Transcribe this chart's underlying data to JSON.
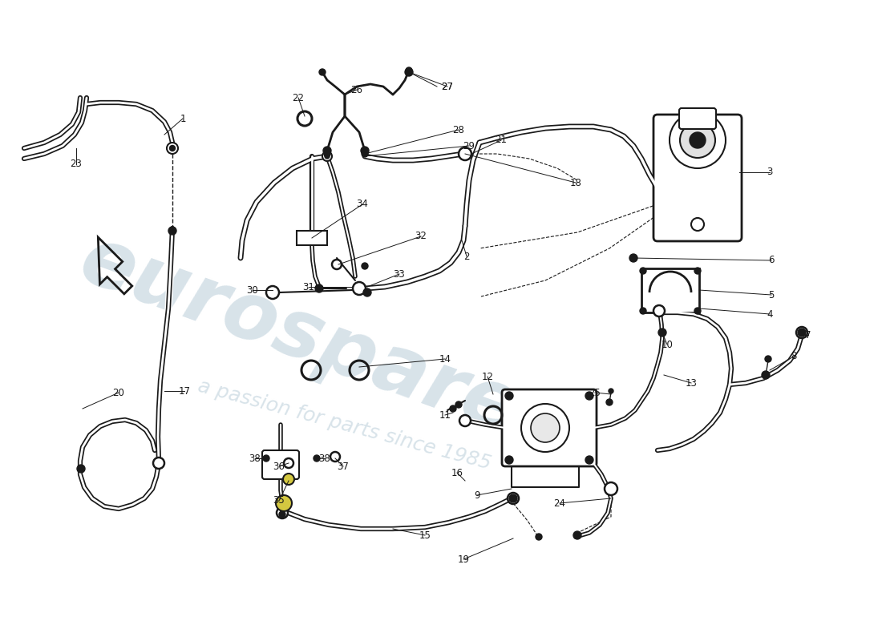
{
  "background_color": "#ffffff",
  "line_color": "#1a1a1a",
  "label_color": "#000000",
  "watermark_text1": "eurospares",
  "watermark_text2": "a passion for parts since 1985",
  "watermark_color": "#b8ccd8",
  "fig_width": 11.0,
  "fig_height": 8.0,
  "dpi": 100
}
